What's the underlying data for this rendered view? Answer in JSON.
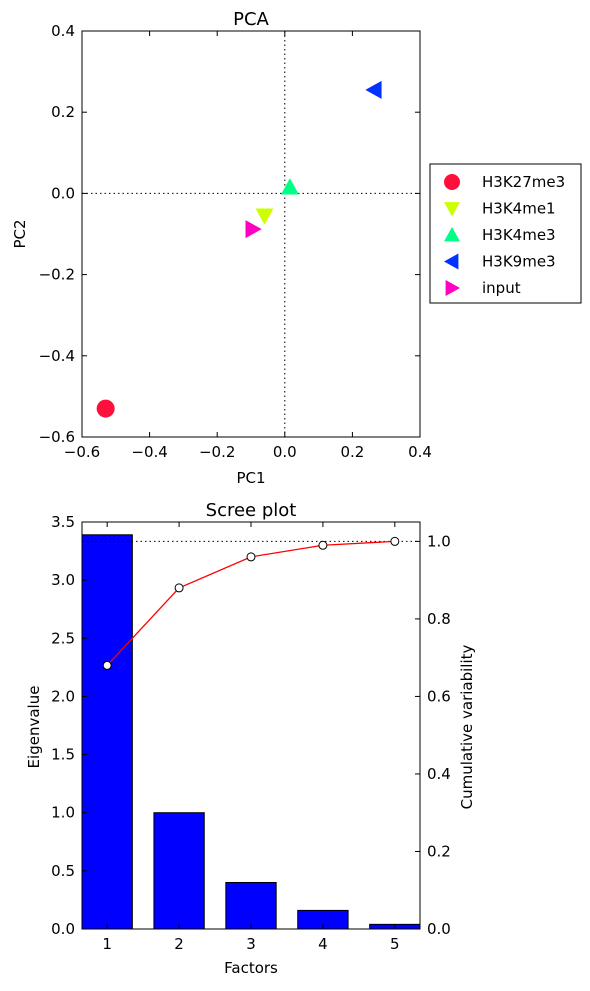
{
  "chart_data": [
    {
      "type": "scatter",
      "title": "PCA",
      "xlabel": "PC1",
      "ylabel": "PC2",
      "xlim": [
        -0.6,
        0.4
      ],
      "ylim": [
        -0.6,
        0.4
      ],
      "xticks": [
        "−0.6",
        "−0.4",
        "−0.2",
        "0.0",
        "0.2",
        "0.4"
      ],
      "yticks": [
        "−0.6",
        "−0.4",
        "−0.2",
        "0.0",
        "0.2",
        "0.4"
      ],
      "reference_lines": {
        "x": 0,
        "y": 0,
        "style": "dotted"
      },
      "legend_position": "outside-right",
      "series": [
        {
          "name": "H3K27me3",
          "x": -0.53,
          "y": -0.53,
          "marker": "circle",
          "color": "#ff0f3c"
        },
        {
          "name": "H3K4me1",
          "x": -0.06,
          "y": -0.055,
          "marker": "triangle-down",
          "color": "#ccff00"
        },
        {
          "name": "H3K4me3",
          "x": 0.015,
          "y": 0.015,
          "marker": "triangle-up",
          "color": "#00ff85"
        },
        {
          "name": "H3K9me3",
          "x": 0.265,
          "y": 0.255,
          "marker": "triangle-left",
          "color": "#0033ff"
        },
        {
          "name": "input",
          "x": -0.095,
          "y": -0.088,
          "marker": "triangle-right",
          "color": "#ff00c2"
        }
      ]
    },
    {
      "type": "bar",
      "title": "Scree plot",
      "xlabel": "Factors",
      "ylabel": "Eigenvalue",
      "ylabel_right": "Cumulative variability",
      "categories": [
        "1",
        "2",
        "3",
        "4",
        "5"
      ],
      "values": [
        3.39,
        1.0,
        0.4,
        0.16,
        0.04
      ],
      "ylim": [
        0,
        3.5
      ],
      "yticks": [
        "0.0",
        "0.5",
        "1.0",
        "1.5",
        "2.0",
        "2.5",
        "3.0",
        "3.5"
      ],
      "bar_color": "#0000ff",
      "secondary_series": {
        "type": "line",
        "values": [
          0.68,
          0.88,
          0.96,
          0.99,
          1.0
        ],
        "color": "#ff0000",
        "ylim": [
          0,
          1.05
        ],
        "yticks": [
          "0.0",
          "0.2",
          "0.4",
          "0.6",
          "0.8",
          "1.0"
        ],
        "reference_line": 1.0
      }
    }
  ]
}
